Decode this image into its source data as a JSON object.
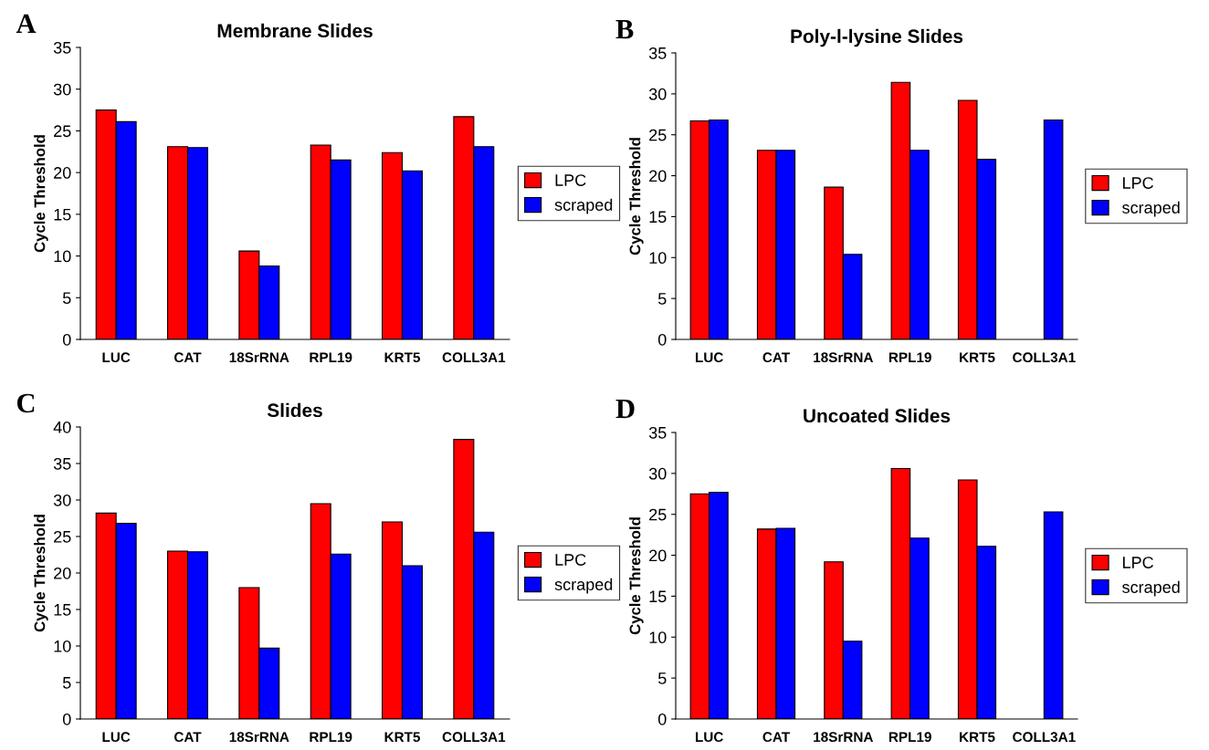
{
  "chart_data": [
    {
      "type": "bar",
      "title": "Membrane Slides",
      "ylabel": "Cycle Threshold",
      "annotations": [
        "A"
      ],
      "categories": [
        "LUC",
        "CAT",
        "18SrRNA",
        "RPL19",
        "KRT5",
        "COLL3A1"
      ],
      "ylim": [
        0,
        35
      ],
      "yticks": [
        0,
        5,
        10,
        15,
        20,
        25,
        30,
        35
      ],
      "legend": "right",
      "grid": false,
      "series": [
        {
          "name": "LPC",
          "color": "#ff0000",
          "values": [
            27.5,
            23.1,
            10.6,
            23.3,
            22.4,
            26.7
          ]
        },
        {
          "name": "scraped",
          "color": "#0000ff",
          "values": [
            26.1,
            23.0,
            8.8,
            21.5,
            20.2,
            23.1
          ]
        }
      ]
    },
    {
      "type": "bar",
      "title": "Poly-l-lysine Slides",
      "ylabel": "Cycle Threshold",
      "annotations": [
        "B"
      ],
      "categories": [
        "LUC",
        "CAT",
        "18SrRNA",
        "RPL19",
        "KRT5",
        "COLL3A1"
      ],
      "ylim": [
        0,
        35
      ],
      "yticks": [
        0,
        5,
        10,
        15,
        20,
        25,
        30,
        35
      ],
      "legend": "right",
      "grid": false,
      "series": [
        {
          "name": "LPC",
          "color": "#ff0000",
          "values": [
            26.7,
            23.1,
            18.6,
            31.4,
            29.2,
            null
          ]
        },
        {
          "name": "scraped",
          "color": "#0000ff",
          "values": [
            26.8,
            23.1,
            10.4,
            23.1,
            22.0,
            26.8
          ]
        }
      ]
    },
    {
      "type": "bar",
      "title": "Slides",
      "ylabel": "Cycle Threshold",
      "annotations": [
        "C"
      ],
      "categories": [
        "LUC",
        "CAT",
        "18SrRNA",
        "RPL19",
        "KRT5",
        "COLL3A1"
      ],
      "ylim": [
        0,
        40
      ],
      "yticks": [
        0,
        5,
        10,
        15,
        20,
        25,
        30,
        35,
        40
      ],
      "legend": "right",
      "grid": false,
      "series": [
        {
          "name": "LPC",
          "color": "#ff0000",
          "values": [
            28.2,
            23.0,
            18.0,
            29.5,
            27.0,
            38.3
          ]
        },
        {
          "name": "scraped",
          "color": "#0000ff",
          "values": [
            26.8,
            22.9,
            9.7,
            22.6,
            21.0,
            25.6
          ]
        }
      ]
    },
    {
      "type": "bar",
      "title": "Uncoated Slides",
      "ylabel": "Cycle Threshold",
      "annotations": [
        "D"
      ],
      "categories": [
        "LUC",
        "CAT",
        "18SrRNA",
        "RPL19",
        "KRT5",
        "COLL3A1"
      ],
      "ylim": [
        0,
        35
      ],
      "yticks": [
        0,
        5,
        10,
        15,
        20,
        25,
        30,
        35
      ],
      "legend": "right",
      "grid": false,
      "series": [
        {
          "name": "LPC",
          "color": "#ff0000",
          "values": [
            27.5,
            23.2,
            19.2,
            30.6,
            29.2,
            null
          ]
        },
        {
          "name": "scraped",
          "color": "#0000ff",
          "values": [
            27.7,
            23.3,
            9.5,
            22.1,
            21.1,
            25.3
          ]
        }
      ]
    }
  ]
}
